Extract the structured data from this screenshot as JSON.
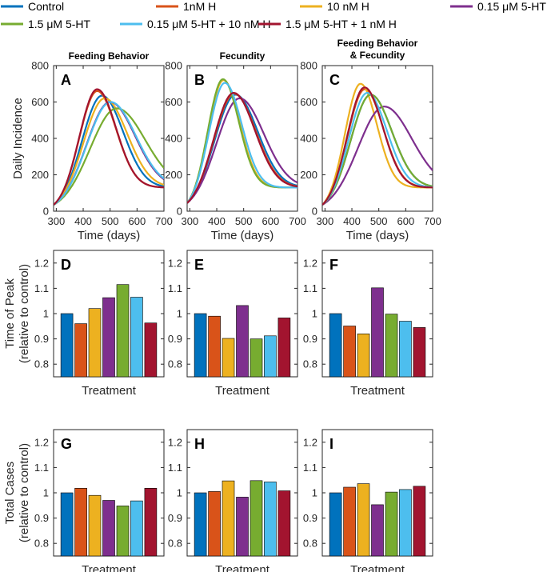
{
  "legend": [
    {
      "key": "control",
      "label": "Control",
      "color": "#0072BD"
    },
    {
      "key": "h1",
      "label": "1nM H",
      "color": "#D95319"
    },
    {
      "key": "h10",
      "label": "10 nM H",
      "color": "#EDB120"
    },
    {
      "key": "s015",
      "label": "0.15 μM 5-HT",
      "color": "#7E2F8E"
    },
    {
      "key": "s15",
      "label": "1.5 μM 5-HT",
      "color": "#77AC30"
    },
    {
      "key": "s015h10",
      "label": "0.15 μM 5-HT + 10 nM H",
      "color": "#4DBEEE"
    },
    {
      "key": "s15h1",
      "label": "1.5 μM 5-HT + 1 nM H",
      "color": "#A2142F"
    }
  ],
  "chart_data": [
    {
      "id": "A",
      "type": "line",
      "title": "Feeding Behavior",
      "xlabel": "Time (days)",
      "ylabel": "Daily Incidence",
      "xlim": [
        290,
        700
      ],
      "ylim": [
        0,
        800
      ],
      "xticks": [
        300,
        400,
        500,
        600,
        700
      ],
      "yticks": [
        0,
        200,
        400,
        600,
        800
      ],
      "baseline": 130,
      "start": 35,
      "series": [
        {
          "name": "Control",
          "peak_day": 470,
          "peak_value": 635
        },
        {
          "name": "1nM H",
          "peak_day": 452,
          "peak_value": 660
        },
        {
          "name": "10 nM H",
          "peak_day": 480,
          "peak_value": 620
        },
        {
          "name": "0.15 μM 5-HT",
          "peak_day": 500,
          "peak_value": 600
        },
        {
          "name": "1.5 μM 5-HT",
          "peak_day": 525,
          "peak_value": 565
        },
        {
          "name": "0.15 μM 5-HT + 10 nM H",
          "peak_day": 502,
          "peak_value": 600
        },
        {
          "name": "1.5 μM 5-HT + 1 nM H",
          "peak_day": 452,
          "peak_value": 670
        }
      ]
    },
    {
      "id": "B",
      "type": "line",
      "title": "Fecundity",
      "xlabel": "Time (days)",
      "ylabel": "",
      "xlim": [
        290,
        700
      ],
      "ylim": [
        0,
        800
      ],
      "xticks": [
        300,
        400,
        500,
        600,
        700
      ],
      "yticks": [
        0,
        200,
        400,
        600,
        800
      ],
      "baseline": 130,
      "start": 45,
      "series": [
        {
          "name": "Control",
          "peak_day": 470,
          "peak_value": 640
        },
        {
          "name": "1nM H",
          "peak_day": 465,
          "peak_value": 645
        },
        {
          "name": "10 nM H",
          "peak_day": 425,
          "peak_value": 720
        },
        {
          "name": "0.15 μM 5-HT",
          "peak_day": 485,
          "peak_value": 620
        },
        {
          "name": "1.5 μM 5-HT",
          "peak_day": 423,
          "peak_value": 725
        },
        {
          "name": "0.15 μM 5-HT + 10 nM H",
          "peak_day": 430,
          "peak_value": 705
        },
        {
          "name": "1.5 μM 5-HT + 1 nM H",
          "peak_day": 463,
          "peak_value": 650
        }
      ]
    },
    {
      "id": "C",
      "type": "line",
      "title": "Feeding Behavior\n& Fecundity",
      "xlabel": "Time (days)",
      "ylabel": "",
      "xlim": [
        290,
        700
      ],
      "ylim": [
        0,
        800
      ],
      "xticks": [
        300,
        400,
        500,
        600,
        700
      ],
      "yticks": [
        0,
        200,
        400,
        600,
        800
      ],
      "baseline": 130,
      "start": 35,
      "series": [
        {
          "name": "Control",
          "peak_day": 470,
          "peak_value": 640
        },
        {
          "name": "1nM H",
          "peak_day": 448,
          "peak_value": 670
        },
        {
          "name": "10 nM H",
          "peak_day": 432,
          "peak_value": 700
        },
        {
          "name": "0.15 μM 5-HT",
          "peak_day": 520,
          "peak_value": 575
        },
        {
          "name": "1.5 μM 5-HT",
          "peak_day": 470,
          "peak_value": 640
        },
        {
          "name": "0.15 μM 5-HT + 10 nM H",
          "peak_day": 457,
          "peak_value": 650
        },
        {
          "name": "1.5 μM 5-HT + 1 nM H",
          "peak_day": 447,
          "peak_value": 680
        }
      ]
    },
    {
      "id": "D",
      "type": "bar",
      "xlabel": "Treatment",
      "ylabel": "Time of Peak\n(relative to control)",
      "ylim": [
        0.75,
        1.25
      ],
      "yticks": [
        0.8,
        0.9,
        1.0,
        1.1,
        1.2
      ],
      "categories": [
        "Control",
        "1nM H",
        "10 nM H",
        "0.15 μM 5-HT",
        "1.5 μM 5-HT",
        "0.15 μM 5-HT + 10 nM H",
        "1.5 μM 5-HT + 1 nM H"
      ],
      "values": [
        1.0,
        0.96,
        1.02,
        1.063,
        1.115,
        1.065,
        0.963
      ]
    },
    {
      "id": "E",
      "type": "bar",
      "xlabel": "Treatment",
      "ylabel": "",
      "ylim": [
        0.75,
        1.25
      ],
      "yticks": [
        0.8,
        0.9,
        1.0,
        1.1,
        1.2
      ],
      "categories": [
        "Control",
        "1nM H",
        "10 nM H",
        "0.15 μM 5-HT",
        "1.5 μM 5-HT",
        "0.15 μM 5-HT + 10 nM H",
        "1.5 μM 5-HT + 1 nM H"
      ],
      "values": [
        1.0,
        0.99,
        0.902,
        1.032,
        0.9,
        0.912,
        0.983
      ]
    },
    {
      "id": "F",
      "type": "bar",
      "xlabel": "Treatment",
      "ylabel": "",
      "ylim": [
        0.75,
        1.25
      ],
      "yticks": [
        0.8,
        0.9,
        1.0,
        1.1,
        1.2
      ],
      "categories": [
        "Control",
        "1nM H",
        "10 nM H",
        "0.15 μM 5-HT",
        "1.5 μM 5-HT",
        "0.15 μM 5-HT + 10 nM H",
        "1.5 μM 5-HT + 1 nM H"
      ],
      "values": [
        1.0,
        0.951,
        0.92,
        1.102,
        0.998,
        0.97,
        0.945
      ]
    },
    {
      "id": "G",
      "type": "bar",
      "xlabel": "Treatment",
      "ylabel": "Total Cases\n(relative to control)",
      "ylim": [
        0.75,
        1.25
      ],
      "yticks": [
        0.8,
        0.9,
        1.0,
        1.1,
        1.2
      ],
      "categories": [
        "Control",
        "1nM H",
        "10 nM H",
        "0.15 μM 5-HT",
        "1.5 μM 5-HT",
        "0.15 μM 5-HT + 10 nM H",
        "1.5 μM 5-HT + 1 nM H"
      ],
      "values": [
        1.0,
        1.018,
        0.99,
        0.97,
        0.948,
        0.968,
        1.018
      ]
    },
    {
      "id": "H",
      "type": "bar",
      "xlabel": "Treatment",
      "ylabel": "",
      "ylim": [
        0.75,
        1.25
      ],
      "yticks": [
        0.8,
        0.9,
        1.0,
        1.1,
        1.2
      ],
      "categories": [
        "Control",
        "1nM H",
        "10 nM H",
        "0.15 μM 5-HT",
        "1.5 μM 5-HT",
        "0.15 μM 5-HT + 10 nM H",
        "1.5 μM 5-HT + 1 nM H"
      ],
      "values": [
        1.0,
        1.005,
        1.047,
        0.983,
        1.048,
        1.043,
        1.008
      ]
    },
    {
      "id": "I",
      "type": "bar",
      "xlabel": "Treatment",
      "ylabel": "",
      "ylim": [
        0.75,
        1.25
      ],
      "yticks": [
        0.8,
        0.9,
        1.0,
        1.1,
        1.2
      ],
      "categories": [
        "Control",
        "1nM H",
        "10 nM H",
        "0.15 μM 5-HT",
        "1.5 μM 5-HT",
        "0.15 μM 5-HT + 10 nM H",
        "1.5 μM 5-HT + 1 nM H"
      ],
      "values": [
        1.0,
        1.022,
        1.036,
        0.953,
        1.003,
        1.013,
        1.026
      ]
    }
  ]
}
